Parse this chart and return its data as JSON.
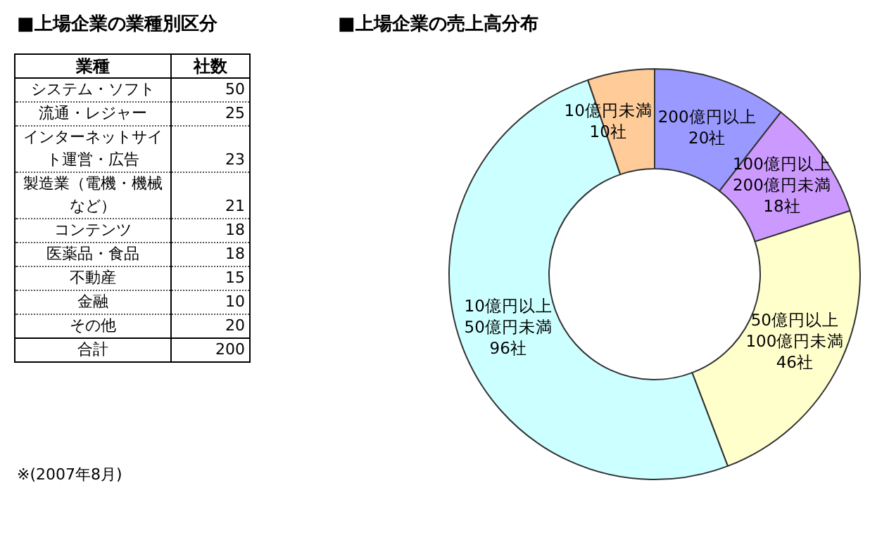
{
  "chart_data": [
    {
      "type": "other",
      "title": "■上場企業の業種別区分",
      "xlabel": "業種",
      "ylabel": "社数",
      "categories": [
        "システム・ソフト",
        "流通・レジャー",
        "インターネットサイト運営・広告",
        "製造業（電機・機械など）",
        "コンテンツ",
        "医薬品・食品",
        "不動産",
        "金融",
        "その他",
        "合計"
      ],
      "values": [
        50,
        25,
        23,
        21,
        18,
        18,
        15,
        10,
        20,
        200
      ],
      "data_labels": true,
      "annotations": [
        "※(2007年8月)"
      ]
    },
    {
      "type": "donut",
      "title": "■上場企業の売上高分布",
      "categories": [
        "200億円以上",
        "100億円以上\n200億円未満",
        "50億円以上\n100億円未満",
        "10億円以上\n50億円未満",
        "10億円未満"
      ],
      "values": [
        20,
        18,
        46,
        96,
        10
      ],
      "value_labels": [
        "20社",
        "18社",
        "46社",
        "96社",
        "10社"
      ],
      "colors": [
        "#9999ff",
        "#cc99ff",
        "#ffffcc",
        "#ccffff",
        "#ffcc99"
      ]
    }
  ]
}
